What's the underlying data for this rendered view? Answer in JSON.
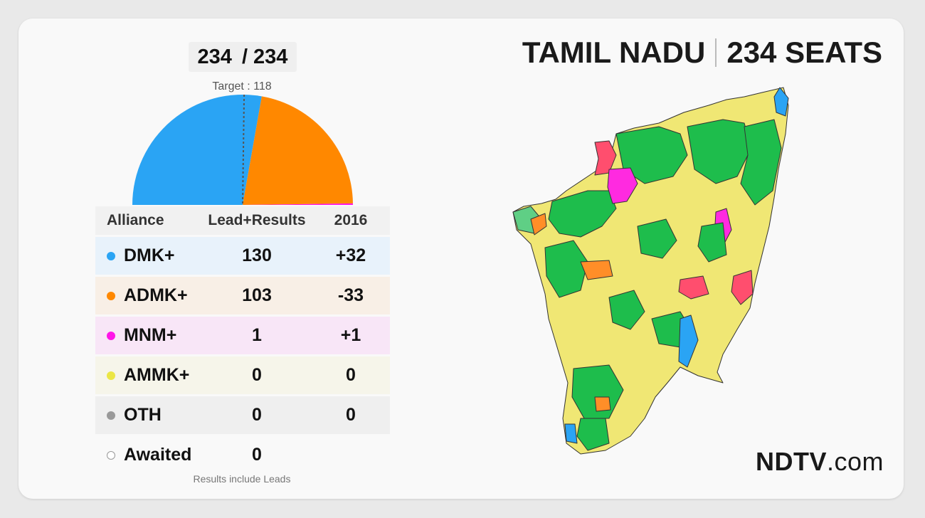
{
  "counter": {
    "declared": "234",
    "total": "/ 234"
  },
  "target_label": "Target : 118",
  "table": {
    "headers": {
      "alliance": "Alliance",
      "lead": "Lead+Results",
      "prev": "2016"
    },
    "rows": [
      {
        "name": "DMK+",
        "lead": "130",
        "change": "+32",
        "color": "#2aa4f4",
        "bg": "#e8f2fb"
      },
      {
        "name": "ADMK+",
        "lead": "103",
        "change": "-33",
        "color": "#ff8800",
        "bg": "#f8efe6"
      },
      {
        "name": "MNM+",
        "lead": "1",
        "change": "+1",
        "color": "#ff14e8",
        "bg": "#f8e6f7"
      },
      {
        "name": "AMMK+",
        "lead": "0",
        "change": "0",
        "color": "#ebe645",
        "bg": "#f6f5ea"
      },
      {
        "name": "OTH",
        "lead": "0",
        "change": "0",
        "color": "#999999",
        "bg": "#efefef"
      },
      {
        "name": "Awaited",
        "lead": "0",
        "change": "",
        "color": "#ffffff",
        "bg": "transparent"
      }
    ]
  },
  "note": "Results include Leads",
  "heading": {
    "state": "TAMIL NADU",
    "seats": "234 SEATS"
  },
  "brand": {
    "name": "NDTV",
    "suffix": ".com"
  },
  "chart_data": {
    "type": "pie",
    "subtype": "half-donut",
    "total": 234,
    "target": 118,
    "series": [
      {
        "name": "DMK+",
        "value": 130,
        "color": "#2aa4f4"
      },
      {
        "name": "ADMK+",
        "value": 103,
        "color": "#ff8800"
      },
      {
        "name": "MNM+",
        "value": 1,
        "color": "#ff14e8"
      },
      {
        "name": "AMMK+",
        "value": 0,
        "color": "#ebe645"
      },
      {
        "name": "OTH",
        "value": 0,
        "color": "#999999"
      }
    ]
  }
}
